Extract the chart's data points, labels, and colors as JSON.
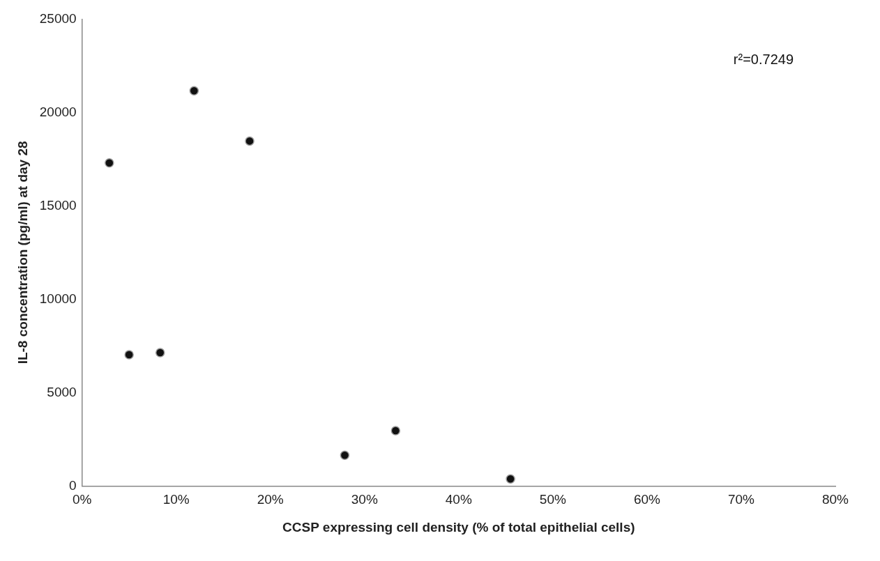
{
  "chart_data": {
    "type": "scatter",
    "xlabel": "CCSP expressing cell density (% of total epithelial cells)",
    "ylabel": "IL-8 concentration (pg/ml) at day 28",
    "annotations": [
      "r²=0.7249"
    ],
    "x": [
      2.9,
      5.0,
      8.3,
      11.9,
      17.8,
      27.9,
      33.3,
      45.5
    ],
    "series": [
      {
        "color": "#111111",
        "values": [
          17300,
          7030,
          7140,
          21160,
          18470,
          1650,
          2960,
          380
        ]
      }
    ],
    "xlim": [
      0,
      80
    ],
    "xticks": [
      {
        "value": 0,
        "label": "0%"
      },
      {
        "value": 10,
        "label": "10%"
      },
      {
        "value": 20,
        "label": "20%"
      },
      {
        "value": 30,
        "label": "30%"
      },
      {
        "value": 40,
        "label": "40%"
      },
      {
        "value": 50,
        "label": "50%"
      },
      {
        "value": 60,
        "label": "60%"
      },
      {
        "value": 70,
        "label": "70%"
      },
      {
        "value": 80,
        "label": "80%"
      }
    ],
    "ylim": [
      0,
      25000
    ],
    "yticks": [
      0,
      5000,
      10000,
      15000,
      20000,
      25000
    ],
    "grid": false,
    "legend": false,
    "marker": "circle"
  }
}
